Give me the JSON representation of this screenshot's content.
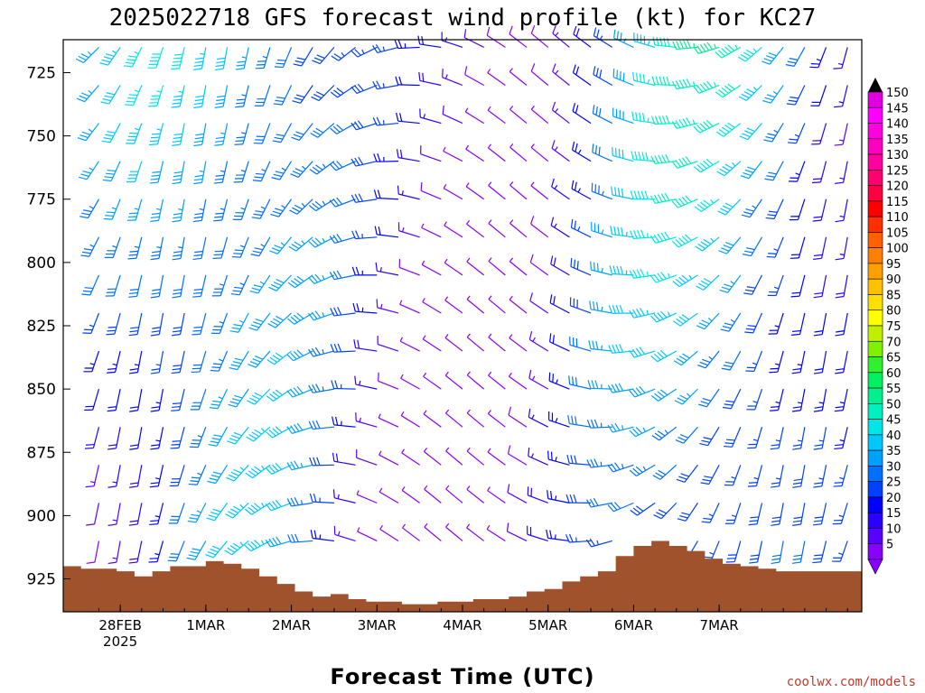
{
  "title": "2025022718 GFS forecast wind profile (kt) for KC27",
  "credit": "coolwx.com/models",
  "chart_data": {
    "type": "wind_barb_time_height",
    "title": "2025022718 GFS forecast wind profile (kt) for KC27",
    "xlabel": "Forecast Time (UTC)",
    "ylabel": "",
    "y_axis": {
      "ticks": [
        725,
        750,
        775,
        800,
        825,
        850,
        875,
        900,
        925
      ],
      "range": [
        712,
        938
      ],
      "units": "hPa",
      "inverted": true
    },
    "x_axis": {
      "range_hours": [
        -10,
        214
      ],
      "ticks": [
        {
          "label": "28FEB",
          "sublabel": "2025",
          "hours": 6
        },
        {
          "label": "1MAR",
          "hours": 30
        },
        {
          "label": "2MAR",
          "hours": 54
        },
        {
          "label": "3MAR",
          "hours": 78
        },
        {
          "label": "4MAR",
          "hours": 102
        },
        {
          "label": "5MAR",
          "hours": 126
        },
        {
          "label": "6MAR",
          "hours": 150
        },
        {
          "label": "7MAR",
          "hours": 174
        }
      ]
    },
    "colorbar": {
      "levels": [
        5,
        10,
        15,
        20,
        25,
        30,
        35,
        40,
        45,
        50,
        55,
        60,
        65,
        70,
        75,
        80,
        85,
        90,
        95,
        100,
        105,
        110,
        115,
        120,
        125,
        130,
        135,
        140,
        145,
        150
      ],
      "colors": [
        "#8a00ff",
        "#5a00ff",
        "#2a00ff",
        "#0000ff",
        "#0040ff",
        "#0070ff",
        "#00a0ff",
        "#00c8ff",
        "#00e6e6",
        "#00f0c0",
        "#00f090",
        "#00f060",
        "#30f030",
        "#80f000",
        "#c0f000",
        "#ffff00",
        "#ffe000",
        "#ffc000",
        "#ffa000",
        "#ff8000",
        "#ff6000",
        "#ff3000",
        "#ff0000",
        "#ff0040",
        "#ff0070",
        "#ff00a0",
        "#ff00c0",
        "#ff00e0",
        "#ff00ff",
        "#e000e0"
      ]
    },
    "terrain": {
      "color": "#a0522d",
      "hours": [
        -10,
        -5,
        0,
        5,
        10,
        15,
        20,
        25,
        30,
        35,
        40,
        45,
        50,
        55,
        60,
        65,
        70,
        75,
        80,
        85,
        90,
        95,
        100,
        105,
        110,
        115,
        120,
        125,
        130,
        135,
        140,
        145,
        150,
        155,
        160,
        165,
        170,
        175,
        180,
        185,
        190,
        214
      ],
      "pressure_hpa": [
        920,
        921,
        921,
        922,
        924,
        922,
        920,
        920,
        918,
        919,
        921,
        924,
        927,
        930,
        932,
        931,
        933,
        934,
        934,
        935,
        935,
        934,
        934,
        933,
        933,
        932,
        930,
        929,
        926,
        924,
        922,
        916,
        912,
        910,
        912,
        914,
        917,
        919,
        920,
        921,
        922,
        924
      ]
    },
    "barb_grid": {
      "hours_step": 6,
      "hours_start": 0,
      "hours_end": 210,
      "levels_hpa": [
        715,
        730,
        745,
        760,
        775,
        790,
        805,
        820,
        835,
        850,
        865,
        880,
        895,
        910
      ]
    }
  }
}
